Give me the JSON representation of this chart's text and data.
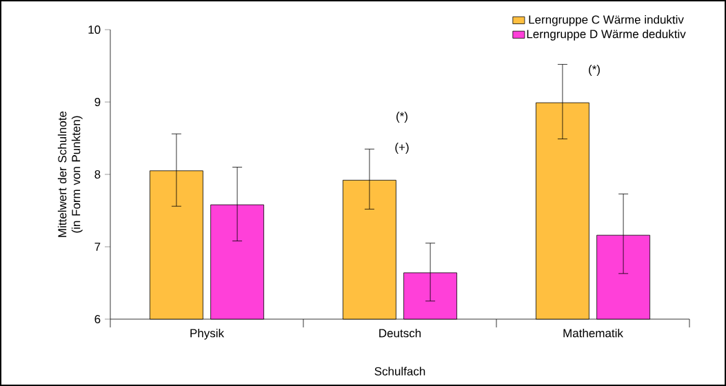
{
  "chart_data": {
    "type": "bar",
    "xlabel": "Schulfach",
    "ylabel": "Mittelwert der Schulnote (in Form von Punkten)",
    "categories": [
      "Physik",
      "Deutsch",
      "Mathematik"
    ],
    "series": [
      {
        "name": "Lerngruppe C Wärme induktiv",
        "color": "#ffbf40",
        "values": [
          8.05,
          7.92,
          8.99
        ],
        "errors": [
          [
            7.56,
            8.56
          ],
          [
            7.52,
            8.35
          ],
          [
            8.49,
            9.52
          ]
        ]
      },
      {
        "name": "Lerngruppe D Wärme deduktiv",
        "color": "#ff40d9",
        "values": [
          7.58,
          6.64,
          7.16
        ],
        "errors": [
          [
            7.08,
            8.1
          ],
          [
            6.25,
            7.05
          ],
          [
            6.63,
            7.73
          ]
        ]
      }
    ],
    "ylim": [
      6,
      10
    ],
    "yticks": [
      6,
      7,
      8,
      9,
      10
    ],
    "legend": "top right",
    "grid": false,
    "annotations": [
      "(*)",
      "(+)",
      "(*)"
    ]
  }
}
